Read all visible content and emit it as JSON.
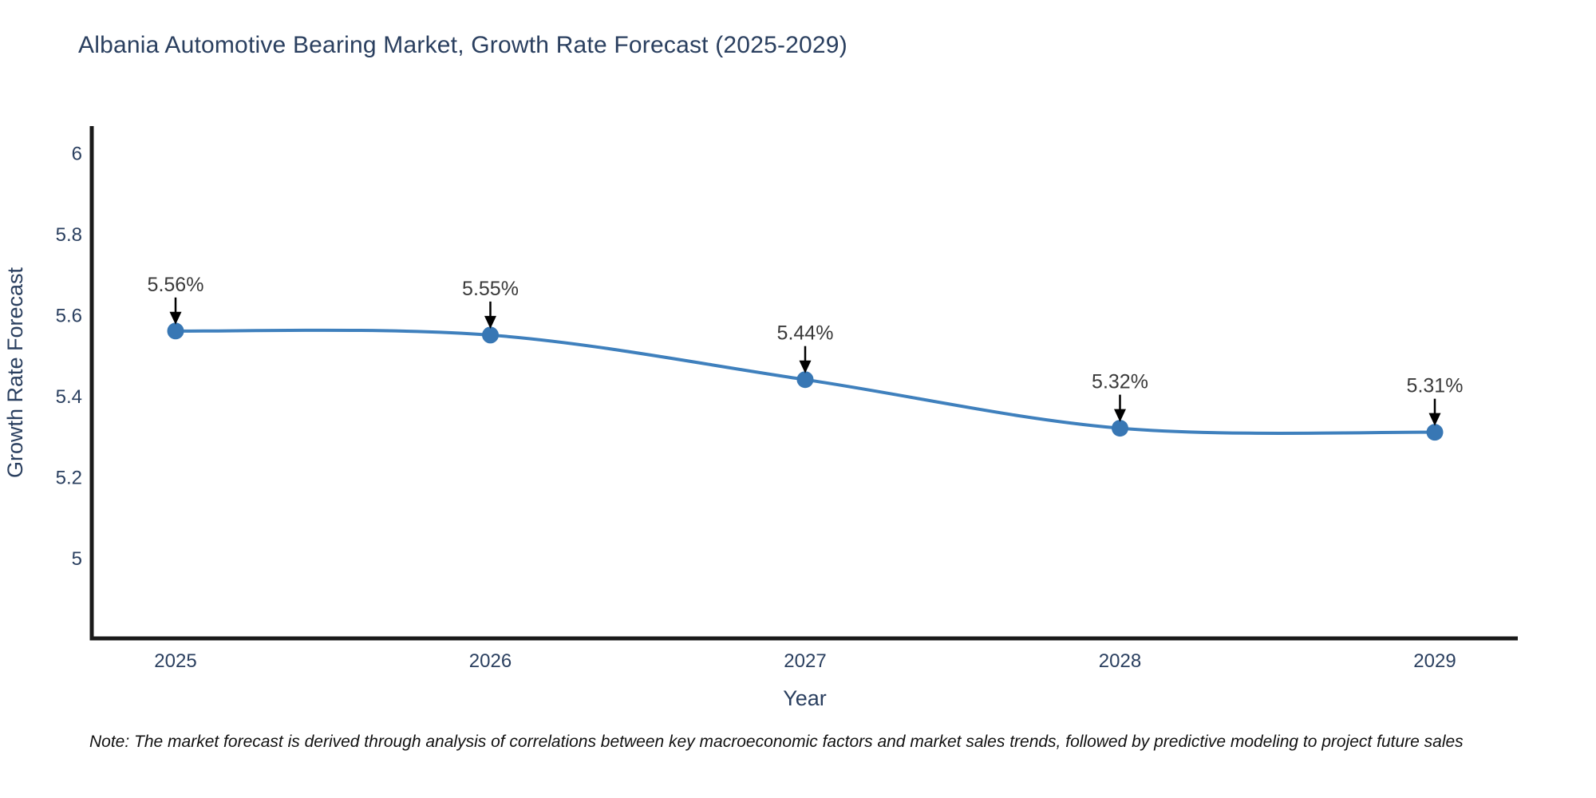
{
  "title": "Albania Automotive Bearing Market, Growth Rate Forecast (2025-2029)",
  "note": "Note: The market forecast is derived through analysis of correlations between key macroeconomic factors and market sales trends, followed by predictive modeling to project future sales",
  "chart_data": {
    "type": "line",
    "title": "Albania Automotive Bearing Market, Growth Rate Forecast (2025-2029)",
    "xlabel": "Year",
    "ylabel": "Growth Rate Forecast",
    "categories": [
      "2025",
      "2026",
      "2027",
      "2028",
      "2029"
    ],
    "x": [
      2025,
      2026,
      2027,
      2028,
      2029
    ],
    "series": [
      {
        "name": "Growth Rate Forecast",
        "values": [
          5.56,
          5.55,
          5.44,
          5.32,
          5.31
        ]
      }
    ],
    "point_labels": [
      "5.56%",
      "5.55%",
      "5.44%",
      "5.32%",
      "5.31%"
    ],
    "yticks": [
      5,
      5.2,
      5.4,
      5.6,
      5.8,
      6
    ],
    "ytick_labels": [
      "5",
      "5.2",
      "5.4",
      "5.6",
      "5.8",
      "6"
    ],
    "ylim": [
      4.8,
      6.07
    ],
    "grid": false,
    "legend": "none",
    "line_shape": "spline",
    "annotations": "black arrows pointing down onto each data point with percentage labels above",
    "colors": {
      "line": "#3f80bd",
      "marker": "#3877b4",
      "axis_spine": "#1a1a1a",
      "title": "#2a3f5f",
      "tick_label": "#2a3f5f",
      "axis_title": "#2a3f5f",
      "annotation_text": "#3a3a3a",
      "annotation_arrow": "#000000",
      "background": "#ffffff"
    }
  }
}
